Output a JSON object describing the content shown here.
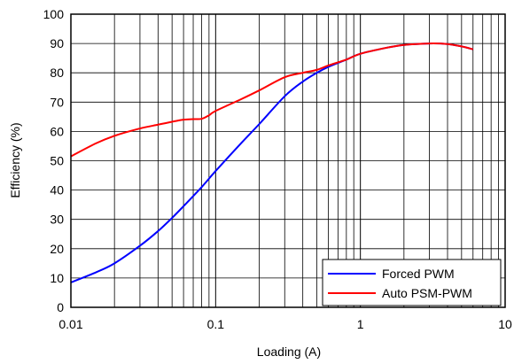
{
  "chart_data": {
    "type": "line",
    "xlabel": "Loading (A)",
    "ylabel": "Efficiency (%)",
    "xscale": "log",
    "xlim": [
      0.01,
      10
    ],
    "ylim": [
      0,
      100
    ],
    "xticks": [
      0.01,
      0.1,
      1,
      10
    ],
    "xtick_labels": [
      "0.01",
      "0.1",
      "1",
      "10"
    ],
    "yticks": [
      0,
      10,
      20,
      30,
      40,
      50,
      60,
      70,
      80,
      90,
      100
    ],
    "ytick_labels": [
      "0",
      "10",
      "20",
      "30",
      "40",
      "50",
      "60",
      "70",
      "80",
      "90",
      "100"
    ],
    "grid": true,
    "legend_position": "bottom-right",
    "series": [
      {
        "name": "Forced PWM",
        "color": "#0000ff",
        "x": [
          0.01,
          0.015,
          0.02,
          0.03,
          0.04,
          0.05,
          0.06,
          0.08,
          0.1,
          0.15,
          0.2,
          0.3,
          0.4,
          0.5,
          0.6,
          0.8,
          1,
          1.5,
          2,
          3,
          4,
          5,
          6
        ],
        "y": [
          8.5,
          12,
          15,
          21,
          26,
          30.5,
          34.5,
          41,
          46.5,
          56,
          62.5,
          72,
          77,
          80,
          82,
          84.5,
          86.5,
          88.5,
          89.5,
          90,
          89.8,
          89,
          88
        ]
      },
      {
        "name": "Auto PSM-PWM",
        "color": "#ff0000",
        "x": [
          0.01,
          0.015,
          0.02,
          0.03,
          0.04,
          0.05,
          0.06,
          0.07,
          0.08,
          0.09,
          0.1,
          0.15,
          0.2,
          0.3,
          0.4,
          0.5,
          0.6,
          0.8,
          1,
          1.5,
          2,
          3,
          4,
          5,
          6
        ],
        "y": [
          51.5,
          56,
          58.5,
          61,
          62.3,
          63.3,
          64,
          64.2,
          64.3,
          65.5,
          67,
          71,
          74,
          78.5,
          80,
          81,
          82.5,
          84.5,
          86.5,
          88.5,
          89.5,
          90,
          89.8,
          89,
          88
        ]
      }
    ]
  }
}
